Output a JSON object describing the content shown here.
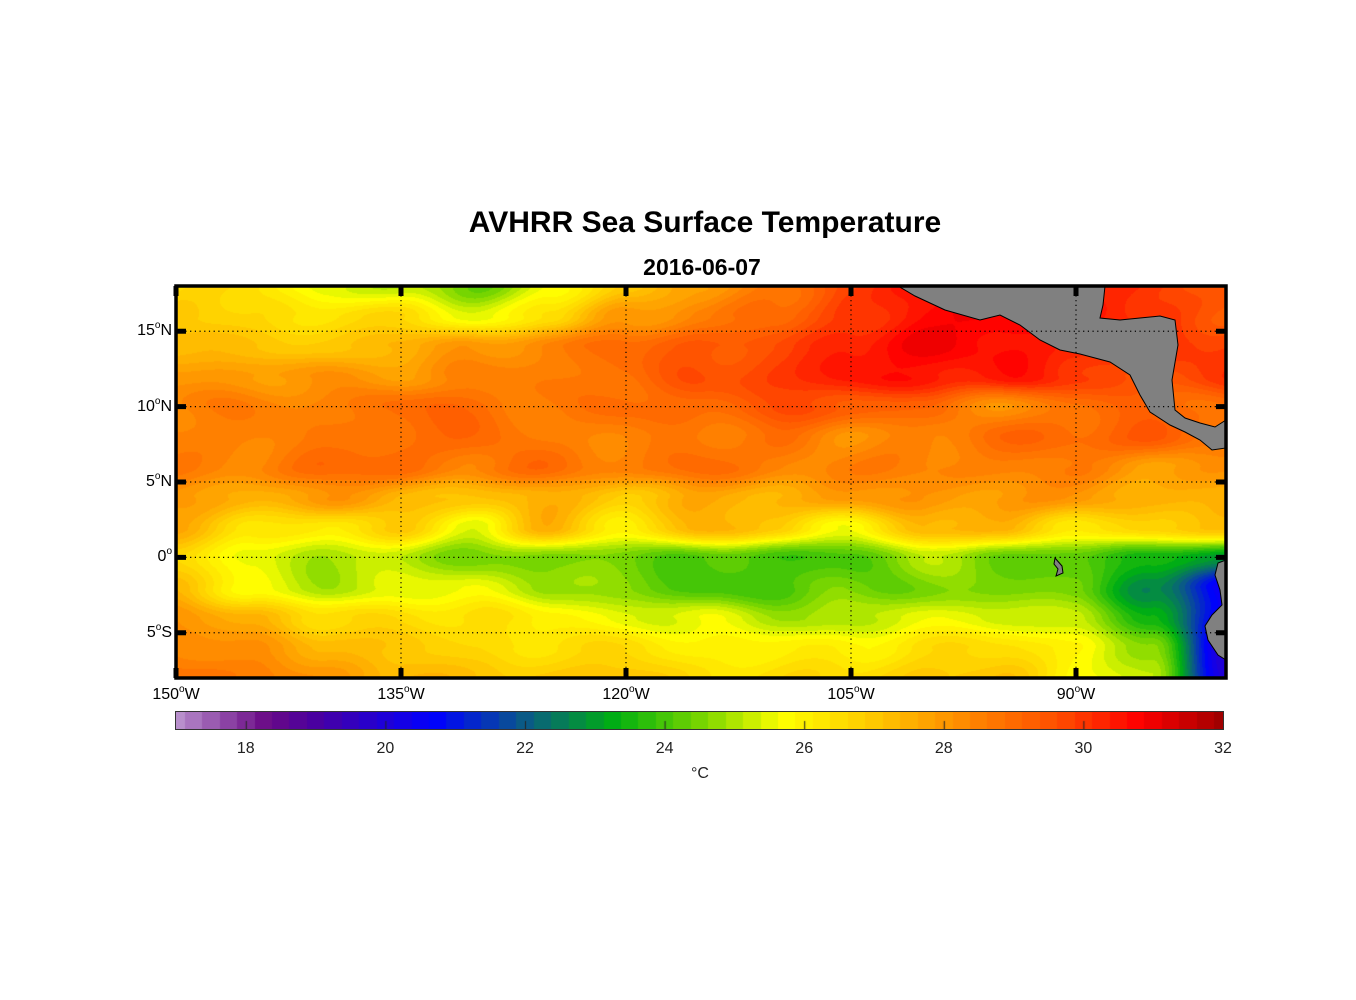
{
  "title": "AVHRR Sea Surface Temperature",
  "subtitle": "2016-06-07",
  "chart_data": {
    "type": "heatmap",
    "title": "AVHRR Sea Surface Temperature",
    "subtitle": "2016-06-07",
    "lon_range": [
      -150,
      -80
    ],
    "lat_range": [
      -8,
      18
    ],
    "lon_ticks": [
      {
        "value": -150,
        "label": "150",
        "suffix": "W"
      },
      {
        "value": -135,
        "label": "135",
        "suffix": "W"
      },
      {
        "value": -120,
        "label": "120",
        "suffix": "W"
      },
      {
        "value": -105,
        "label": "105",
        "suffix": "W"
      },
      {
        "value": -90,
        "label": "90",
        "suffix": "W"
      }
    ],
    "lat_ticks": [
      {
        "value": 15,
        "label": "15",
        "suffix": "N"
      },
      {
        "value": 10,
        "label": "10",
        "suffix": "N"
      },
      {
        "value": 5,
        "label": "5",
        "suffix": "N"
      },
      {
        "value": 0,
        "label": "0",
        "suffix": ""
      },
      {
        "value": -5,
        "label": "5",
        "suffix": "S"
      }
    ],
    "grid": "dotted",
    "grid_lons": [
      -150,
      -145,
      -140,
      -135,
      -130,
      -125,
      -120,
      -115,
      -110,
      -105,
      -100,
      -95,
      -90,
      -85,
      -80
    ],
    "grid_lats": [
      18,
      16,
      14,
      12,
      10,
      8,
      6,
      4,
      2,
      0,
      -2,
      -4,
      -6,
      -8
    ],
    "sst_celsius": [
      [
        26.5,
        26.5,
        25.5,
        25,
        24.5,
        25.5,
        27,
        28,
        28.5,
        30,
        30.5,
        31,
        30,
        30,
        29.5
      ],
      [
        27,
        26.5,
        26.5,
        26.5,
        25.5,
        26.5,
        28,
        28.5,
        29,
        30,
        30.5,
        31,
        30.5,
        30,
        29.5
      ],
      [
        27.5,
        27,
        27,
        27.5,
        28,
        28.5,
        29,
        29.5,
        29.5,
        30.5,
        31,
        30.5,
        30.5,
        30,
        30
      ],
      [
        28,
        28,
        28,
        28,
        28.5,
        28.5,
        29,
        29.5,
        30,
        30.5,
        30.5,
        30.5,
        30,
        29.5,
        30
      ],
      [
        28.5,
        28.5,
        28.5,
        29,
        29,
        28.5,
        29,
        29,
        29.5,
        29.5,
        29,
        28,
        29,
        29,
        29
      ],
      [
        28.5,
        28.5,
        28.5,
        29,
        29,
        28.5,
        28.5,
        28.5,
        29,
        28,
        28.5,
        29,
        29,
        29.5,
        28.5
      ],
      [
        28.5,
        28.5,
        29,
        29,
        28.5,
        29,
        28.5,
        29,
        28.5,
        28.5,
        28.5,
        28.5,
        28.5,
        28,
        28
      ],
      [
        28,
        27.5,
        28,
        27.5,
        27,
        27.5,
        27,
        27.5,
        27.5,
        28,
        28,
        28,
        28,
        27.5,
        27.5
      ],
      [
        27.5,
        26.5,
        26,
        27,
        25.5,
        27.5,
        26,
        27.5,
        27,
        25.5,
        27.5,
        27.5,
        26,
        27,
        27
      ],
      [
        26.5,
        25.5,
        25,
        25,
        24.5,
        24.5,
        24.5,
        24,
        24,
        24,
        25,
        24.5,
        24,
        23.5,
        23
      ],
      [
        27.5,
        25.5,
        25,
        25.5,
        25.5,
        25,
        24.5,
        24,
        24,
        24.5,
        24.5,
        24.5,
        24.5,
        22.5,
        20.5
      ],
      [
        28,
        27.5,
        26.5,
        26.5,
        26.5,
        26,
        25.5,
        25.5,
        25,
        25,
        25.5,
        25.5,
        25,
        23.5,
        20.5
      ],
      [
        28.5,
        28,
        27.5,
        27,
        26.5,
        26.5,
        26.5,
        26,
        26,
        26,
        26.5,
        26.5,
        26,
        24.5,
        20
      ],
      [
        29,
        28.5,
        28,
        27.5,
        27,
        27,
        27,
        26.5,
        26.5,
        26.5,
        27,
        27,
        26,
        25,
        20
      ]
    ],
    "land_color": "#808080",
    "colorbar": {
      "range": [
        17,
        32
      ],
      "ticks": [
        18,
        20,
        22,
        24,
        26,
        28,
        30,
        32
      ],
      "label": "°C",
      "stops": [
        [
          17,
          "#b88fcc"
        ],
        [
          18.3,
          "#6a0a86"
        ],
        [
          19,
          "#4a00a0"
        ],
        [
          20.7,
          "#0000ff"
        ],
        [
          22,
          "#0a5a86"
        ],
        [
          23.3,
          "#00b010"
        ],
        [
          24.6,
          "#80d800"
        ],
        [
          25.7,
          "#ffff00"
        ],
        [
          27,
          "#ffc800"
        ],
        [
          28.5,
          "#ff8000"
        ],
        [
          29.6,
          "#ff5000"
        ],
        [
          30.8,
          "#ff0000"
        ],
        [
          32,
          "#a00000"
        ]
      ]
    }
  }
}
